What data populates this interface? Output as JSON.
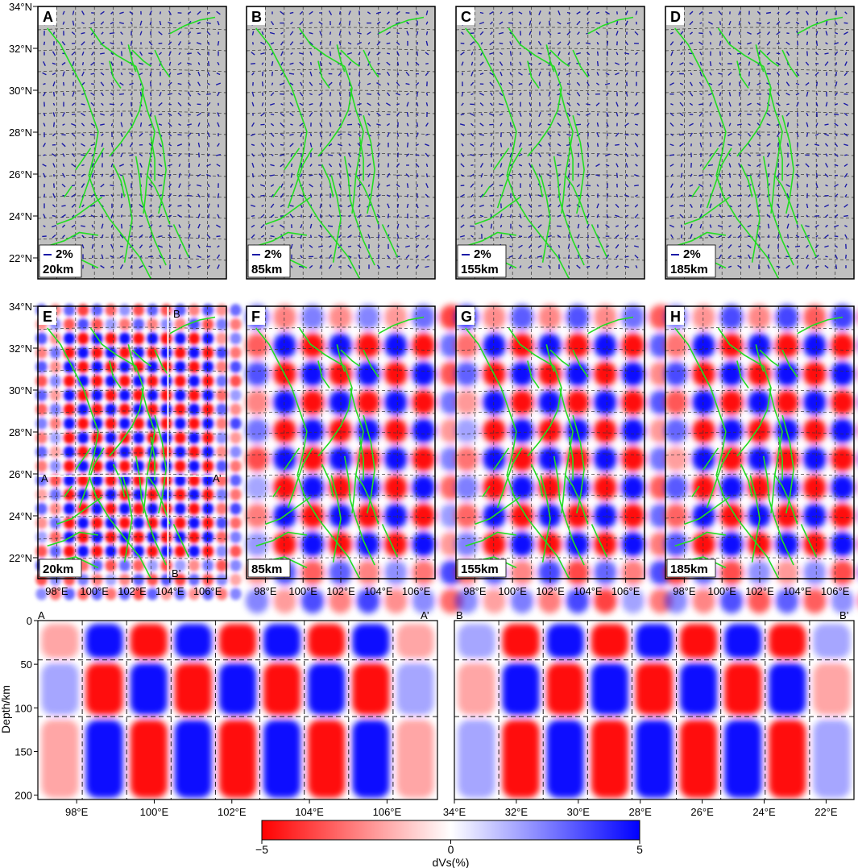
{
  "figure": {
    "top_panels": [
      {
        "letter": "A",
        "depth": "20km",
        "scale_label": "2%"
      },
      {
        "letter": "B",
        "depth": "85km",
        "scale_label": "2%"
      },
      {
        "letter": "C",
        "depth": "155km",
        "scale_label": "2%"
      },
      {
        "letter": "D",
        "depth": "185km",
        "scale_label": "2%"
      }
    ],
    "mid_panels": [
      {
        "letter": "E",
        "depth": "20km"
      },
      {
        "letter": "F",
        "depth": "85km"
      },
      {
        "letter": "G",
        "depth": "155km"
      },
      {
        "letter": "H",
        "depth": "185km"
      }
    ],
    "profile_labels": {
      "a": "A",
      "a_prime": "A’",
      "b": "B",
      "b_prime": "B’"
    },
    "lat_ticks": [
      "22°N",
      "24°N",
      "26°N",
      "28°N",
      "30°N",
      "32°N",
      "34°N"
    ],
    "lon_ticks": [
      "98°E",
      "100°E",
      "102°E",
      "104°E",
      "106°E"
    ],
    "section_a_ticks": [
      "98°E",
      "100°E",
      "102°E",
      "104°E",
      "106°E"
    ],
    "section_b_ticks": [
      "34°E",
      "32°E",
      "30°E",
      "28°E",
      "26°E",
      "24°E",
      "22°E"
    ],
    "depth_ticks": [
      "0",
      "50",
      "100",
      "150",
      "200"
    ],
    "depth_axis_label": "Depth/km",
    "colorbar": {
      "min_label": "−5",
      "mid_label": "0",
      "max_label": "5",
      "label": "dVs(%)"
    }
  },
  "chart_data": [
    {
      "type": "heatmap",
      "panel": "A",
      "title": "",
      "lon_range": [
        97,
        107
      ],
      "lat_range": [
        21,
        34
      ],
      "depth_km": 20,
      "layers": [
        "anisotropy fast-direction bars (2% scale)",
        "fault traces"
      ]
    },
    {
      "type": "heatmap",
      "panel": "B",
      "lon_range": [
        97,
        107
      ],
      "lat_range": [
        21,
        34
      ],
      "depth_km": 85
    },
    {
      "type": "heatmap",
      "panel": "C",
      "lon_range": [
        97,
        107
      ],
      "lat_range": [
        21,
        34
      ],
      "depth_km": 155
    },
    {
      "type": "heatmap",
      "panel": "D",
      "lon_range": [
        97,
        107
      ],
      "lat_range": [
        21,
        34
      ],
      "depth_km": 185
    },
    {
      "type": "heatmap",
      "panel": "E",
      "variable": "dVs(%)",
      "range": [
        -5,
        5
      ],
      "depth_km": 20,
      "checker_cells": 16
    },
    {
      "type": "heatmap",
      "panel": "F",
      "variable": "dVs(%)",
      "range": [
        -5,
        5
      ],
      "depth_km": 85,
      "checker_cells": 8
    },
    {
      "type": "heatmap",
      "panel": "G",
      "variable": "dVs(%)",
      "range": [
        -5,
        5
      ],
      "depth_km": 155,
      "checker_cells": 8
    },
    {
      "type": "heatmap",
      "panel": "H",
      "variable": "dVs(%)",
      "range": [
        -5,
        5
      ],
      "depth_km": 185,
      "checker_cells": 8
    },
    {
      "type": "heatmap",
      "panel": "A-A’",
      "x_range_lon": [
        97,
        107
      ],
      "depth_range_km": [
        0,
        205
      ],
      "layer_boundaries_km": [
        45,
        110
      ]
    },
    {
      "type": "heatmap",
      "panel": "B-B’",
      "x_range_lat": [
        34,
        21
      ],
      "depth_range_km": [
        0,
        205
      ],
      "layer_boundaries_km": [
        45,
        110
      ]
    }
  ],
  "colors": {
    "positive": "#0000ff",
    "negative": "#ff0000",
    "neutral": "#ffffff",
    "land": "#c0c0c0",
    "fault": "#22dd22",
    "bar": "#1a1aa6"
  }
}
